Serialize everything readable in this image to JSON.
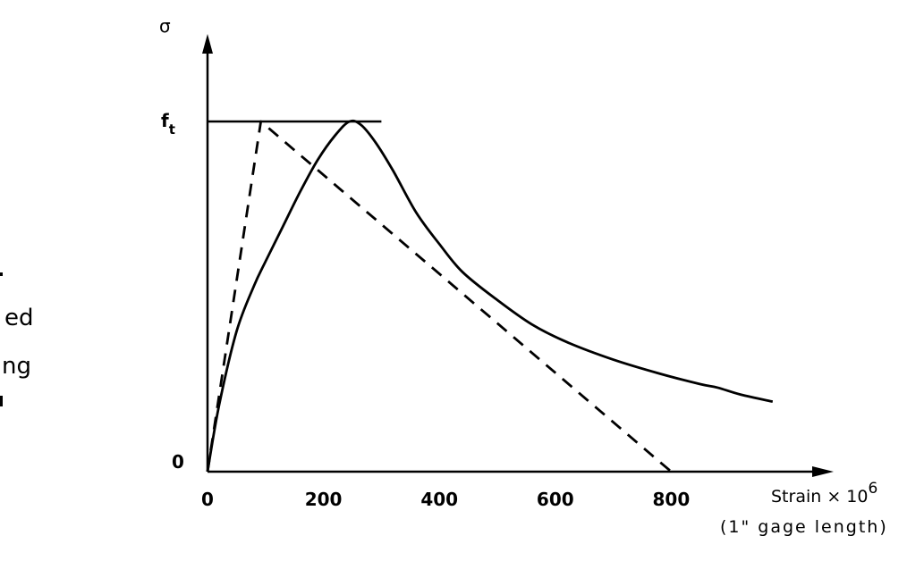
{
  "side_text": [
    "ed",
    "ng"
  ],
  "chart_data": {
    "type": "line",
    "ylabel": "σ",
    "y_tick_labels": [
      "f_t",
      "0"
    ],
    "xlabel": "Strain × 10",
    "xlabel_exponent": "6",
    "xlabel_sub": "(1\" gage  length)",
    "x_ticks": [
      0,
      200,
      400,
      600,
      800
    ],
    "xlim": [
      0,
      1000
    ],
    "ylim": [
      0,
      1.0
    ],
    "ft_line": {
      "x_start": 0,
      "x_end": 300,
      "y": 1.0
    },
    "series": [
      {
        "style": "solid",
        "x": [
          0,
          20,
          50,
          80,
          100,
          130,
          160,
          190,
          220,
          245,
          265,
          290,
          320,
          360,
          400,
          440,
          500,
          560,
          620,
          700,
          780,
          850,
          880,
          920,
          975
        ],
        "y": [
          0,
          0.19,
          0.4,
          0.53,
          0.6,
          0.7,
          0.8,
          0.89,
          0.96,
          1.0,
          0.99,
          0.94,
          0.86,
          0.74,
          0.65,
          0.57,
          0.49,
          0.42,
          0.37,
          0.32,
          0.28,
          0.25,
          0.24,
          0.22,
          0.2
        ]
      },
      {
        "style": "dashed",
        "x": [
          0,
          92,
          800
        ],
        "y": [
          0,
          1.0,
          0
        ]
      }
    ]
  }
}
